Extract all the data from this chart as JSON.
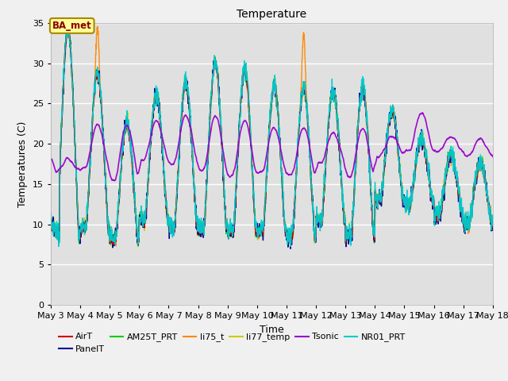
{
  "title": "Temperature",
  "xlabel": "Time",
  "ylabel": "Temperatures (C)",
  "ylim": [
    0,
    35
  ],
  "xlim_days": [
    3,
    18
  ],
  "fig_bg": "#f0f0f0",
  "plot_bg": "#e0e0e0",
  "series": {
    "AirT": {
      "color": "#cc0000",
      "lw": 1.0
    },
    "PanelT": {
      "color": "#000099",
      "lw": 1.0
    },
    "AM25T_PRT": {
      "color": "#00cc00",
      "lw": 1.0
    },
    "li75_t": {
      "color": "#ff8800",
      "lw": 1.0
    },
    "li77_temp": {
      "color": "#cccc00",
      "lw": 1.0
    },
    "Tsonic": {
      "color": "#9900cc",
      "lw": 1.2
    },
    "NR01_PRT": {
      "color": "#00cccc",
      "lw": 1.0
    }
  },
  "annotation_text": "BA_met",
  "tick_labels": [
    "May 3",
    "May 4",
    "May 5",
    "May 6",
    "May 7",
    "May 8",
    "May 9",
    "May 10",
    "May 11",
    "May 12",
    "May 13",
    "May 14",
    "May 15",
    "May 16",
    "May 17",
    "May 18"
  ],
  "tick_positions": [
    3,
    4,
    5,
    6,
    7,
    8,
    9,
    10,
    11,
    12,
    13,
    14,
    15,
    16,
    17,
    18
  ],
  "yticks": [
    0,
    5,
    10,
    15,
    20,
    25,
    30,
    35
  ],
  "peaks": [
    34.0,
    28.5,
    22.5,
    26.0,
    27.5,
    30.0,
    29.0,
    27.0,
    26.7,
    26.7,
    27.0,
    24.0,
    20.5,
    18.5,
    17.5
  ],
  "troughs": [
    8.5,
    9.5,
    8.0,
    10.5,
    9.5,
    9.5,
    9.0,
    9.0,
    8.5,
    10.5,
    8.5,
    13.0,
    12.5,
    11.0,
    10.0
  ],
  "tsonic_peaks": [
    18.0,
    22.5,
    22.5,
    23.0,
    23.5,
    23.5,
    23.0,
    22.0,
    22.0,
    21.5,
    22.0,
    21.0,
    24.0,
    21.0,
    20.5
  ],
  "tsonic_troughs": [
    16.5,
    17.0,
    15.5,
    18.0,
    17.5,
    16.5,
    16.0,
    16.5,
    16.0,
    17.5,
    16.0,
    18.5,
    19.0,
    19.0,
    18.5
  ],
  "air_start": 10.0,
  "tsonic_start": 18.0,
  "li75_spike_days": [
    4,
    11
  ],
  "li75_spike_vals": [
    34.2,
    33.8
  ]
}
